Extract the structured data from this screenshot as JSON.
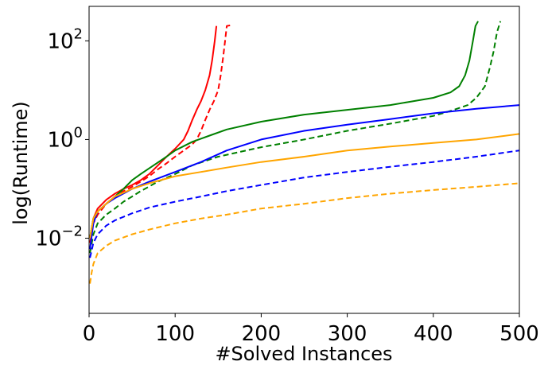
{
  "chart_data": {
    "type": "line",
    "title": "",
    "xlabel": "#Solved Instances",
    "ylabel": "log(Runtime)",
    "yscale": "log",
    "grid": false,
    "legend": "none",
    "xlim": [
      0,
      500
    ],
    "ylim": [
      0.0003,
      500
    ],
    "x_ticks": [
      0,
      100,
      200,
      300,
      400,
      500
    ],
    "x_tick_labels": [
      "0",
      "100",
      "200",
      "300",
      "400",
      "500"
    ],
    "y_ticks": [
      0.01,
      1,
      100
    ],
    "y_tick_labels": [
      {
        "base": "10",
        "exp": "−2"
      },
      {
        "base": "10",
        "exp": "0"
      },
      {
        "base": "10",
        "exp": "2"
      }
    ],
    "series": [
      {
        "color": "#ff0000",
        "style": "solid",
        "points": [
          [
            1,
            0.01
          ],
          [
            5,
            0.025
          ],
          [
            10,
            0.04
          ],
          [
            20,
            0.06
          ],
          [
            30,
            0.08
          ],
          [
            40,
            0.1
          ],
          [
            50,
            0.12
          ],
          [
            60,
            0.15
          ],
          [
            70,
            0.2
          ],
          [
            80,
            0.3
          ],
          [
            90,
            0.45
          ],
          [
            100,
            0.65
          ],
          [
            110,
            1.0
          ],
          [
            115,
            1.5
          ],
          [
            120,
            2.5
          ],
          [
            125,
            4
          ],
          [
            130,
            6
          ],
          [
            135,
            10
          ],
          [
            140,
            20
          ],
          [
            143,
            40
          ],
          [
            146,
            100
          ],
          [
            148,
            200
          ]
        ]
      },
      {
        "color": "#ff0000",
        "style": "dashed",
        "points": [
          [
            1,
            0.008
          ],
          [
            5,
            0.02
          ],
          [
            10,
            0.03
          ],
          [
            20,
            0.05
          ],
          [
            30,
            0.07
          ],
          [
            40,
            0.09
          ],
          [
            50,
            0.11
          ],
          [
            60,
            0.14
          ],
          [
            70,
            0.18
          ],
          [
            80,
            0.25
          ],
          [
            90,
            0.33
          ],
          [
            100,
            0.45
          ],
          [
            110,
            0.6
          ],
          [
            120,
            0.8
          ],
          [
            125,
            1.0
          ],
          [
            130,
            1.5
          ],
          [
            135,
            2.5
          ],
          [
            140,
            4
          ],
          [
            145,
            6
          ],
          [
            150,
            10
          ],
          [
            153,
            20
          ],
          [
            156,
            50
          ],
          [
            158,
            100
          ],
          [
            160,
            200
          ],
          [
            166,
            210
          ]
        ]
      },
      {
        "color": "#008000",
        "style": "solid",
        "points": [
          [
            1,
            0.01
          ],
          [
            5,
            0.025
          ],
          [
            10,
            0.035
          ],
          [
            20,
            0.05
          ],
          [
            30,
            0.07
          ],
          [
            40,
            0.1
          ],
          [
            50,
            0.15
          ],
          [
            60,
            0.2
          ],
          [
            75,
            0.3
          ],
          [
            90,
            0.45
          ],
          [
            100,
            0.6
          ],
          [
            120,
            0.9
          ],
          [
            140,
            1.2
          ],
          [
            160,
            1.6
          ],
          [
            200,
            2.3
          ],
          [
            250,
            3.2
          ],
          [
            300,
            4.0
          ],
          [
            350,
            5.0
          ],
          [
            400,
            7.0
          ],
          [
            420,
            9
          ],
          [
            430,
            12
          ],
          [
            437,
            20
          ],
          [
            442,
            40
          ],
          [
            446,
            100
          ],
          [
            449,
            200
          ],
          [
            452,
            250
          ]
        ]
      },
      {
        "color": "#008000",
        "style": "dashed",
        "points": [
          [
            1,
            0.005
          ],
          [
            5,
            0.012
          ],
          [
            10,
            0.02
          ],
          [
            20,
            0.03
          ],
          [
            30,
            0.04
          ],
          [
            40,
            0.055
          ],
          [
            50,
            0.07
          ],
          [
            60,
            0.09
          ],
          [
            80,
            0.14
          ],
          [
            100,
            0.2
          ],
          [
            120,
            0.3
          ],
          [
            150,
            0.45
          ],
          [
            200,
            0.7
          ],
          [
            250,
            1.0
          ],
          [
            300,
            1.5
          ],
          [
            350,
            2.1
          ],
          [
            400,
            3.0
          ],
          [
            420,
            3.8
          ],
          [
            440,
            5
          ],
          [
            450,
            7
          ],
          [
            460,
            12
          ],
          [
            466,
            30
          ],
          [
            470,
            60
          ],
          [
            474,
            150
          ],
          [
            478,
            250
          ]
        ]
      },
      {
        "color": "#0000ff",
        "style": "solid",
        "points": [
          [
            1,
            0.006
          ],
          [
            5,
            0.02
          ],
          [
            10,
            0.035
          ],
          [
            20,
            0.05
          ],
          [
            30,
            0.065
          ],
          [
            50,
            0.1
          ],
          [
            70,
            0.14
          ],
          [
            100,
            0.22
          ],
          [
            130,
            0.35
          ],
          [
            160,
            0.6
          ],
          [
            200,
            1.0
          ],
          [
            250,
            1.5
          ],
          [
            300,
            2.0
          ],
          [
            350,
            2.6
          ],
          [
            400,
            3.4
          ],
          [
            450,
            4.2
          ],
          [
            500,
            5.0
          ]
        ]
      },
      {
        "color": "#0000ff",
        "style": "dashed",
        "points": [
          [
            1,
            0.004
          ],
          [
            5,
            0.008
          ],
          [
            10,
            0.012
          ],
          [
            20,
            0.018
          ],
          [
            30,
            0.023
          ],
          [
            50,
            0.032
          ],
          [
            70,
            0.042
          ],
          [
            100,
            0.055
          ],
          [
            130,
            0.07
          ],
          [
            160,
            0.09
          ],
          [
            200,
            0.12
          ],
          [
            250,
            0.17
          ],
          [
            300,
            0.22
          ],
          [
            350,
            0.28
          ],
          [
            400,
            0.35
          ],
          [
            450,
            0.45
          ],
          [
            500,
            0.6
          ]
        ]
      },
      {
        "color": "#ffa500",
        "style": "solid",
        "points": [
          [
            1,
            0.01
          ],
          [
            5,
            0.025
          ],
          [
            10,
            0.035
          ],
          [
            20,
            0.05
          ],
          [
            30,
            0.07
          ],
          [
            50,
            0.1
          ],
          [
            70,
            0.13
          ],
          [
            100,
            0.18
          ],
          [
            130,
            0.22
          ],
          [
            160,
            0.27
          ],
          [
            200,
            0.35
          ],
          [
            250,
            0.45
          ],
          [
            300,
            0.6
          ],
          [
            350,
            0.72
          ],
          [
            400,
            0.85
          ],
          [
            450,
            1.0
          ],
          [
            500,
            1.3
          ]
        ]
      },
      {
        "color": "#ffa500",
        "style": "dashed",
        "points": [
          [
            1,
            0.0012
          ],
          [
            3,
            0.002
          ],
          [
            5,
            0.003
          ],
          [
            10,
            0.005
          ],
          [
            20,
            0.007
          ],
          [
            30,
            0.009
          ],
          [
            50,
            0.012
          ],
          [
            70,
            0.015
          ],
          [
            100,
            0.02
          ],
          [
            130,
            0.025
          ],
          [
            160,
            0.03
          ],
          [
            200,
            0.04
          ],
          [
            250,
            0.05
          ],
          [
            300,
            0.065
          ],
          [
            350,
            0.08
          ],
          [
            400,
            0.095
          ],
          [
            450,
            0.11
          ],
          [
            500,
            0.13
          ]
        ]
      }
    ]
  }
}
